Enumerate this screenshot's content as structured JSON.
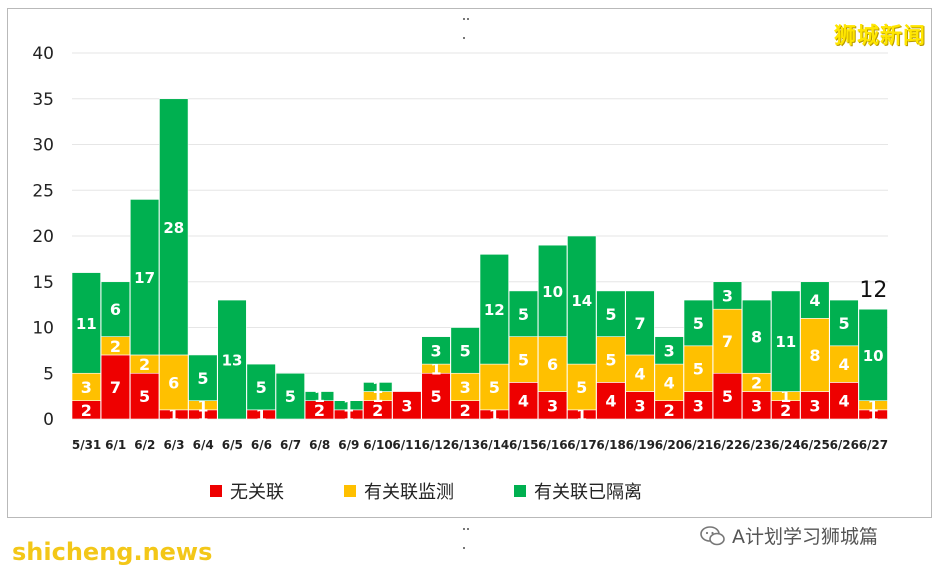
{
  "brand": "狮城新闻",
  "watermark_left": "shicheng.news",
  "watermark_right": "A计划学习狮城篇",
  "colors": {
    "unlinked": "#ee0000",
    "linked_surveillance": "#ffc000",
    "linked_quarantined": "#00b050"
  },
  "chart_data": {
    "type": "bar",
    "stacked": true,
    "categories": [
      "5/31",
      "6/1",
      "6/2",
      "6/3",
      "6/4",
      "6/5",
      "6/6",
      "6/7",
      "6/8",
      "6/9",
      "6/10",
      "6/11",
      "6/12",
      "6/13",
      "6/14",
      "6/15",
      "6/16",
      "6/17",
      "6/18",
      "6/19",
      "6/20",
      "6/21",
      "6/22",
      "6/23",
      "6/24",
      "6/25",
      "6/26",
      "6/27"
    ],
    "series": [
      {
        "name": "无关联",
        "color": "#ee0000",
        "values": [
          2,
          7,
          5,
          1,
          1,
          0,
          1,
          0,
          2,
          1,
          2,
          3,
          5,
          2,
          1,
          4,
          3,
          1,
          4,
          3,
          2,
          3,
          5,
          3,
          2,
          3,
          4,
          1
        ]
      },
      {
        "name": "有关联监测",
        "color": "#ffc000",
        "values": [
          3,
          2,
          2,
          6,
          1,
          0,
          0,
          0,
          0,
          0,
          1,
          0,
          1,
          3,
          5,
          5,
          6,
          5,
          5,
          4,
          4,
          5,
          7,
          2,
          1,
          8,
          4,
          1
        ]
      },
      {
        "name": "有关联已隔离",
        "color": "#00b050",
        "values": [
          11,
          6,
          17,
          28,
          5,
          13,
          5,
          5,
          1,
          1,
          1,
          0,
          3,
          5,
          12,
          5,
          10,
          14,
          5,
          7,
          3,
          5,
          3,
          8,
          11,
          4,
          5,
          10
        ]
      }
    ],
    "ylim": [
      0,
      40
    ],
    "yticks": [
      0,
      5,
      10,
      15,
      20,
      25,
      30,
      35,
      40
    ],
    "grid": true,
    "legend": "bottom",
    "annotation": "12"
  }
}
